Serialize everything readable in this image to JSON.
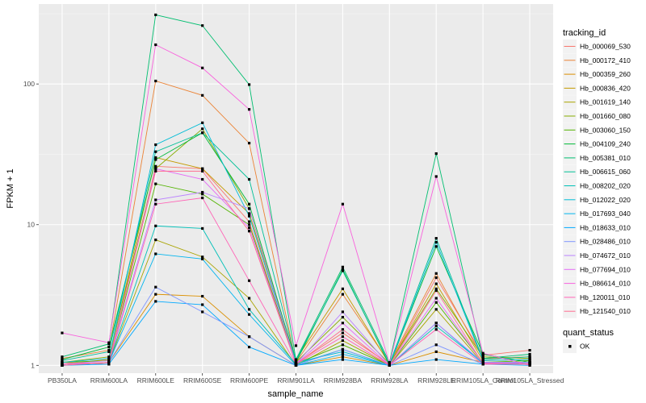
{
  "chart_data": {
    "type": "line",
    "scale_y": "log10",
    "ylim": [
      0.88,
      370
    ],
    "yticks": [
      1,
      10,
      100
    ],
    "ytick_labels": [
      "1",
      "10",
      "100"
    ],
    "xlabel": "sample_name",
    "ylabel": "FPKM + 1",
    "categories": [
      "PB350LA",
      "RRIM600LA",
      "RRIM600LE",
      "RRIM600SE",
      "RRIM600PE",
      "RRIM901LA",
      "RRIM928BA",
      "RRIM928LA",
      "RRIM928LE",
      "RRIM105LA_Control",
      "RRIM105LA_Stressed"
    ],
    "legend_color_title": "tracking_id",
    "legend_shape_title": "quant_status",
    "legend_shape_label": "OK",
    "series": [
      {
        "name": "Hb_000069_530",
        "color": "#F8766D",
        "values": [
          1.05,
          1.02,
          26,
          25,
          10.5,
          1.03,
          1.7,
          1.02,
          4.2,
          1.18,
          1.28
        ]
      },
      {
        "name": "Hb_000172_410",
        "color": "#EB8335",
        "values": [
          1.12,
          1.28,
          105,
          83,
          38,
          1.05,
          3.2,
          1.04,
          4.5,
          1.12,
          1.15
        ]
      },
      {
        "name": "Hb_000359_260",
        "color": "#DA8F00",
        "values": [
          1.0,
          1.05,
          3.2,
          3.1,
          1.6,
          1.0,
          1.15,
          1.0,
          1.25,
          1.05,
          1.05
        ]
      },
      {
        "name": "Hb_000836_420",
        "color": "#C49A00",
        "values": [
          1.02,
          1.1,
          30,
          25,
          12,
          1.1,
          3.5,
          1.02,
          3.8,
          1.08,
          1.1
        ]
      },
      {
        "name": "Hb_001619_140",
        "color": "#A9A400",
        "values": [
          1.0,
          1.05,
          7.8,
          5.9,
          3.0,
          1.0,
          1.5,
          1.0,
          2.5,
          1.03,
          1.05
        ]
      },
      {
        "name": "Hb_001660_080",
        "color": "#86AC00",
        "values": [
          1.05,
          1.15,
          25,
          48,
          13,
          1.05,
          2.2,
          1.03,
          3.5,
          1.15,
          1.12
        ]
      },
      {
        "name": "Hb_003060_150",
        "color": "#53B400",
        "values": [
          1.05,
          1.08,
          19.5,
          16.5,
          10,
          1.03,
          1.4,
          1.0,
          2.8,
          1.05,
          1.08
        ]
      },
      {
        "name": "Hb_004109_240",
        "color": "#00BA38",
        "values": [
          1.1,
          1.35,
          29,
          45,
          14,
          1.05,
          4.8,
          1.0,
          7.0,
          1.2,
          1.05
        ]
      },
      {
        "name": "Hb_005381_010",
        "color": "#00BE70",
        "values": [
          1.15,
          1.42,
          310,
          260,
          99,
          1.1,
          5.0,
          1.05,
          32,
          1.12,
          1.2
        ]
      },
      {
        "name": "Hb_006615_060",
        "color": "#00C097",
        "values": [
          1.08,
          1.25,
          33,
          45,
          21,
          1.08,
          4.7,
          1.02,
          8.0,
          1.1,
          1.15
        ]
      },
      {
        "name": "Hb_008202_020",
        "color": "#00C0B8",
        "values": [
          1.0,
          1.05,
          9.8,
          9.4,
          2.5,
          1.02,
          1.3,
          1.0,
          1.9,
          1.04,
          1.05
        ]
      },
      {
        "name": "Hb_012022_020",
        "color": "#00BCD6",
        "values": [
          1.05,
          1.12,
          37,
          53,
          11.5,
          1.05,
          1.25,
          1.0,
          7.5,
          1.08,
          1.1
        ]
      },
      {
        "name": "Hb_017693_040",
        "color": "#00B5EE",
        "values": [
          1.0,
          1.05,
          6.2,
          5.7,
          2.3,
          1.0,
          1.2,
          1.0,
          2.0,
          1.03,
          1.05
        ]
      },
      {
        "name": "Hb_018633_010",
        "color": "#00A9FF",
        "values": [
          1.0,
          1.02,
          2.85,
          2.7,
          1.35,
          1.0,
          1.1,
          1.0,
          1.1,
          1.02,
          1.0
        ]
      },
      {
        "name": "Hb_028486_010",
        "color": "#7F96FF",
        "values": [
          1.02,
          1.05,
          3.6,
          2.4,
          1.6,
          1.0,
          1.3,
          1.0,
          1.4,
          1.02,
          1.03
        ]
      },
      {
        "name": "Hb_074672_010",
        "color": "#BB83FF",
        "values": [
          1.02,
          1.08,
          15,
          17,
          13,
          1.02,
          2.4,
          1.0,
          2.0,
          1.05,
          1.05
        ]
      },
      {
        "name": "Hb_077694_010",
        "color": "#E46CF6",
        "values": [
          1.0,
          1.05,
          25,
          21,
          9.5,
          1.02,
          2.0,
          1.0,
          3.0,
          1.04,
          1.03
        ]
      },
      {
        "name": "Hb_086614_010",
        "color": "#F962DD",
        "values": [
          1.7,
          1.45,
          190,
          130,
          66,
          1.38,
          14,
          1.03,
          22,
          1.22,
          1.0
        ]
      },
      {
        "name": "Hb_120011_010",
        "color": "#FF63B6",
        "values": [
          1.02,
          1.05,
          14,
          15.5,
          4.0,
          1.02,
          1.6,
          1.0,
          1.8,
          1.02,
          1.02
        ]
      },
      {
        "name": "Hb_121540_010",
        "color": "#FF6C90",
        "values": [
          1.0,
          1.05,
          24,
          24,
          9.0,
          1.02,
          1.8,
          1.0,
          3.4,
          1.03,
          1.02
        ]
      }
    ]
  }
}
